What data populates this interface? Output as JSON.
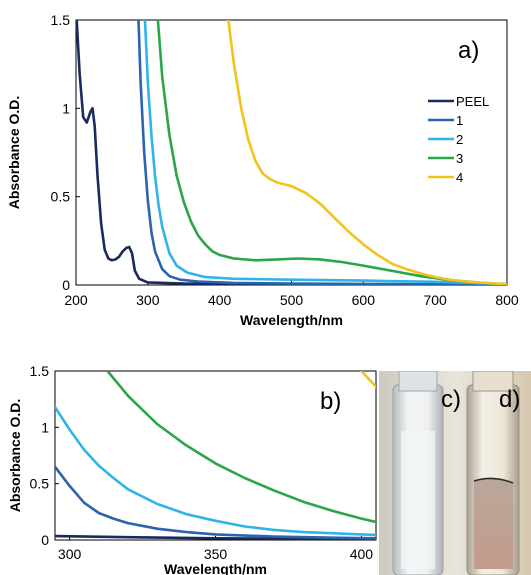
{
  "chart_data": [
    {
      "type": "line",
      "panel_label": "a)",
      "xlabel": "Wavelength/nm",
      "ylabel": "Absorbance O.D.",
      "xlim": [
        200,
        800
      ],
      "ylim": [
        0,
        1.5
      ],
      "xticks": [
        200,
        300,
        400,
        500,
        600,
        700,
        800
      ],
      "yticks": [
        0,
        0.5,
        1,
        1.5
      ],
      "xtick_labels": [
        "200",
        "300",
        "400",
        "500",
        "600",
        "700",
        "800"
      ],
      "ytick_labels": [
        "0",
        "0.5",
        "1",
        "1.5"
      ],
      "legend_position": "right",
      "grid": false,
      "series": [
        {
          "name": "PEEL",
          "color": "#1b2a5e",
          "points": [
            [
              201,
              1.5
            ],
            [
              205,
              1.2
            ],
            [
              210,
              0.95
            ],
            [
              215,
              0.92
            ],
            [
              220,
              0.98
            ],
            [
              223,
              1.0
            ],
            [
              226,
              0.9
            ],
            [
              230,
              0.62
            ],
            [
              235,
              0.35
            ],
            [
              240,
              0.2
            ],
            [
              245,
              0.15
            ],
            [
              250,
              0.14
            ],
            [
              255,
              0.145
            ],
            [
              260,
              0.16
            ],
            [
              265,
              0.19
            ],
            [
              270,
              0.21
            ],
            [
              274,
              0.215
            ],
            [
              278,
              0.18
            ],
            [
              282,
              0.08
            ],
            [
              288,
              0.035
            ],
            [
              300,
              0.015
            ],
            [
              350,
              0.008
            ],
            [
              450,
              0.005
            ],
            [
              800,
              0.0
            ]
          ]
        },
        {
          "name": "1",
          "color": "#2b64ae",
          "points": [
            [
              287,
              1.5
            ],
            [
              290,
              1.15
            ],
            [
              295,
              0.75
            ],
            [
              300,
              0.48
            ],
            [
              305,
              0.3
            ],
            [
              310,
              0.19
            ],
            [
              320,
              0.09
            ],
            [
              330,
              0.05
            ],
            [
              345,
              0.03
            ],
            [
              370,
              0.02
            ],
            [
              420,
              0.012
            ],
            [
              500,
              0.008
            ],
            [
              800,
              0.002
            ]
          ]
        },
        {
          "name": "2",
          "color": "#2fb4e8",
          "points": [
            [
              296,
              1.5
            ],
            [
              300,
              1.15
            ],
            [
              305,
              0.85
            ],
            [
              310,
              0.62
            ],
            [
              315,
              0.45
            ],
            [
              320,
              0.33
            ],
            [
              330,
              0.18
            ],
            [
              340,
              0.11
            ],
            [
              355,
              0.07
            ],
            [
              380,
              0.045
            ],
            [
              420,
              0.035
            ],
            [
              500,
              0.03
            ],
            [
              600,
              0.025
            ],
            [
              700,
              0.018
            ],
            [
              800,
              0.005
            ]
          ]
        },
        {
          "name": "3",
          "color": "#2ba54a",
          "points": [
            [
              314,
              1.5
            ],
            [
              320,
              1.18
            ],
            [
              330,
              0.85
            ],
            [
              340,
              0.62
            ],
            [
              350,
              0.47
            ],
            [
              360,
              0.36
            ],
            [
              370,
              0.28
            ],
            [
              380,
              0.23
            ],
            [
              390,
              0.19
            ],
            [
              400,
              0.17
            ],
            [
              420,
              0.15
            ],
            [
              450,
              0.14
            ],
            [
              480,
              0.145
            ],
            [
              510,
              0.15
            ],
            [
              540,
              0.145
            ],
            [
              570,
              0.13
            ],
            [
              600,
              0.11
            ],
            [
              640,
              0.08
            ],
            [
              680,
              0.05
            ],
            [
              720,
              0.028
            ],
            [
              760,
              0.014
            ],
            [
              800,
              0.004
            ]
          ]
        },
        {
          "name": "4",
          "color": "#f2c318",
          "points": [
            [
              412,
              1.5
            ],
            [
              420,
              1.25
            ],
            [
              430,
              1.0
            ],
            [
              440,
              0.82
            ],
            [
              450,
              0.7
            ],
            [
              460,
              0.63
            ],
            [
              470,
              0.6
            ],
            [
              480,
              0.58
            ],
            [
              500,
              0.56
            ],
            [
              520,
              0.52
            ],
            [
              540,
              0.46
            ],
            [
              560,
              0.38
            ],
            [
              580,
              0.3
            ],
            [
              600,
              0.23
            ],
            [
              620,
              0.17
            ],
            [
              640,
              0.12
            ],
            [
              660,
              0.09
            ],
            [
              680,
              0.065
            ],
            [
              700,
              0.045
            ],
            [
              720,
              0.03
            ],
            [
              750,
              0.017
            ],
            [
              800,
              0.004
            ]
          ]
        }
      ]
    },
    {
      "type": "line",
      "panel_label": "b)",
      "xlabel": "Wavelength/nm",
      "ylabel": "Absorbance O.D.",
      "xlim": [
        295,
        405
      ],
      "ylim": [
        0,
        1.5
      ],
      "xticks": [
        300,
        350,
        400
      ],
      "yticks": [
        0,
        0.5,
        1,
        1.5
      ],
      "xtick_labels": [
        "300",
        "350",
        "400"
      ],
      "ytick_labels": [
        "0",
        "0.5",
        "1",
        "1.5"
      ],
      "grid": false,
      "series": [
        {
          "name": "PEEL",
          "color": "#1b2a5e",
          "points": [
            [
              295,
              0.035
            ],
            [
              320,
              0.025
            ],
            [
              350,
              0.015
            ],
            [
              380,
              0.01
            ],
            [
              405,
              0.008
            ]
          ]
        },
        {
          "name": "1",
          "color": "#2b64ae",
          "points": [
            [
              295,
              0.65
            ],
            [
              300,
              0.48
            ],
            [
              305,
              0.33
            ],
            [
              310,
              0.24
            ],
            [
              315,
              0.19
            ],
            [
              320,
              0.15
            ],
            [
              330,
              0.1
            ],
            [
              340,
              0.07
            ],
            [
              350,
              0.05
            ],
            [
              370,
              0.03
            ],
            [
              390,
              0.02
            ],
            [
              405,
              0.015
            ]
          ]
        },
        {
          "name": "2",
          "color": "#2fb4e8",
          "points": [
            [
              295,
              1.18
            ],
            [
              300,
              0.98
            ],
            [
              305,
              0.8
            ],
            [
              310,
              0.66
            ],
            [
              315,
              0.55
            ],
            [
              320,
              0.45
            ],
            [
              330,
              0.32
            ],
            [
              340,
              0.23
            ],
            [
              350,
              0.17
            ],
            [
              360,
              0.12
            ],
            [
              370,
              0.09
            ],
            [
              380,
              0.07
            ],
            [
              390,
              0.06
            ],
            [
              400,
              0.05
            ],
            [
              405,
              0.045
            ]
          ]
        },
        {
          "name": "3",
          "color": "#2ba54a",
          "points": [
            [
              313,
              1.5
            ],
            [
              320,
              1.28
            ],
            [
              330,
              1.03
            ],
            [
              340,
              0.84
            ],
            [
              350,
              0.68
            ],
            [
              360,
              0.55
            ],
            [
              370,
              0.44
            ],
            [
              380,
              0.34
            ],
            [
              390,
              0.26
            ],
            [
              400,
              0.19
            ],
            [
              405,
              0.16
            ]
          ]
        },
        {
          "name": "4",
          "color": "#f2c318",
          "points": [
            [
              400,
              1.5
            ],
            [
              405,
              1.36
            ]
          ]
        }
      ]
    }
  ],
  "photos": {
    "c_label": "c)",
    "d_label": "d)"
  }
}
